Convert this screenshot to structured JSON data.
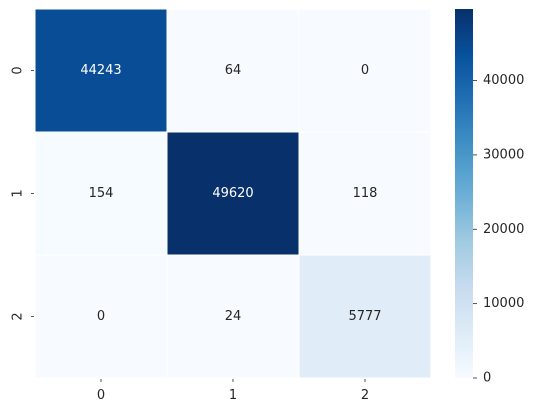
{
  "chart_data": {
    "type": "heatmap",
    "title": "",
    "xlabel": "",
    "ylabel": "",
    "x_categories": [
      "0",
      "1",
      "2"
    ],
    "y_categories": [
      "0",
      "1",
      "2"
    ],
    "values": [
      [
        44243,
        64,
        0
      ],
      [
        154,
        49620,
        118
      ],
      [
        0,
        24,
        5777
      ]
    ],
    "colormap": "Blues",
    "color_range": [
      0,
      49620
    ],
    "colorbar": {
      "ticks": [
        0,
        10000,
        20000,
        30000,
        40000
      ],
      "tick_labels": [
        "0",
        "10000",
        "20000",
        "30000",
        "40000"
      ],
      "placement": "right"
    },
    "annotations": true,
    "grid_lines": true,
    "text_colors": {
      "light": "#ffffff",
      "dark": "#262626"
    }
  }
}
